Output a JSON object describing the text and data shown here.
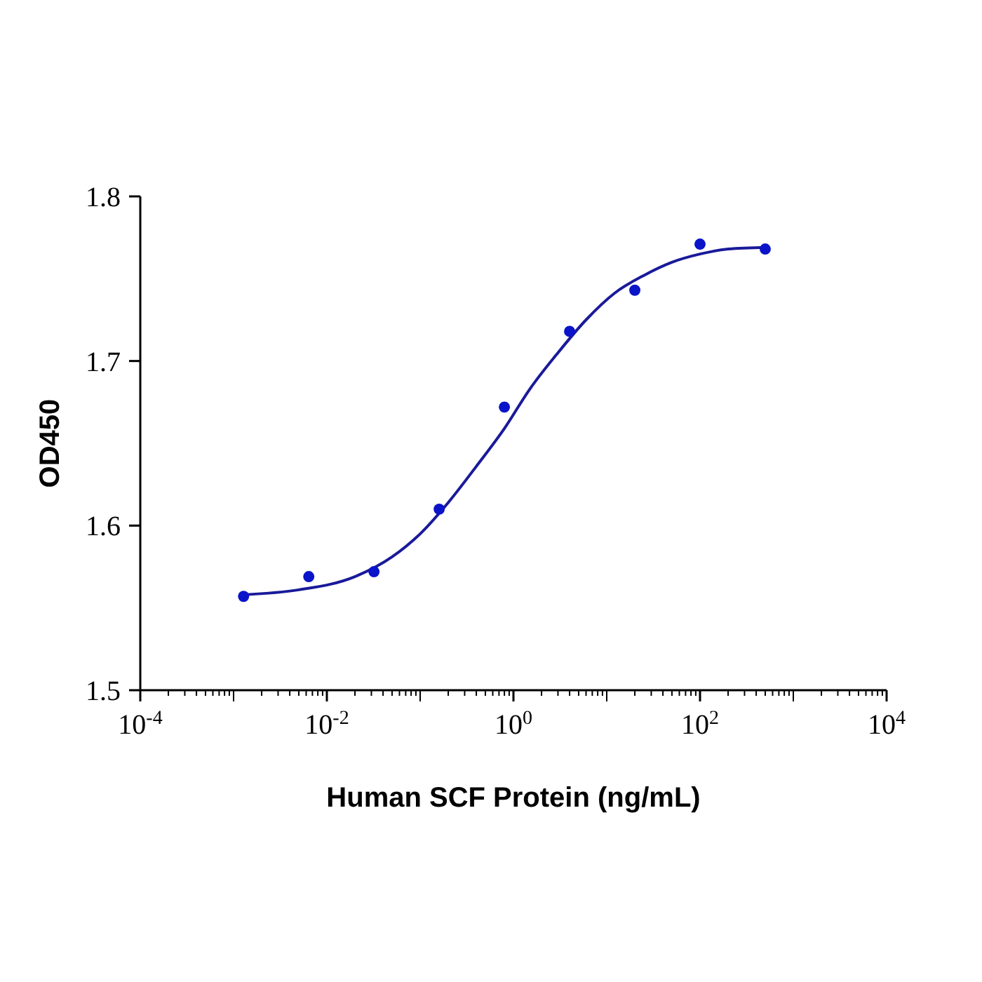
{
  "chart_data": {
    "type": "scatter",
    "xlabel": "Human SCF Protein (ng/mL)",
    "ylabel": "OD450",
    "log": "x",
    "grid": false,
    "marker": "circle",
    "xlim": [
      0.0001,
      10000
    ],
    "xticks": [
      {
        "value": 0.0001,
        "label": "10$^{-4}$"
      },
      {
        "value": 0.01,
        "label": "10$^{-2}$"
      },
      {
        "value": 1,
        "label": "10$^{0}$"
      },
      {
        "value": 100,
        "label": "10$^{2}$"
      },
      {
        "value": 10000,
        "label": "10$^{4}$"
      }
    ],
    "ylim": [
      1.5,
      1.8
    ],
    "yticks": [
      1.5,
      1.6,
      1.7,
      1.8
    ],
    "series": [
      {
        "color": "#0a14c8",
        "x": [
          0.00128,
          0.0064,
          0.032,
          0.16,
          0.8,
          4,
          20,
          100,
          500
        ],
        "values": [
          1.557,
          1.569,
          1.572,
          1.61,
          1.672,
          1.718,
          1.743,
          1.771,
          1.768
        ]
      },
      {
        "type": "line",
        "color": "#1a1a9a",
        "line_style": "solid",
        "marker": "none",
        "x": [
          0.00128,
          0.005,
          0.02,
          0.05,
          0.1,
          0.2,
          0.4,
          0.8,
          1.5,
          3,
          6,
          12,
          25,
          50,
          100,
          200,
          500
        ],
        "values": [
          1.558,
          1.561,
          1.569,
          1.581,
          1.595,
          1.614,
          1.636,
          1.659,
          1.683,
          1.705,
          1.725,
          1.741,
          1.752,
          1.76,
          1.765,
          1.768,
          1.769
        ]
      }
    ]
  }
}
